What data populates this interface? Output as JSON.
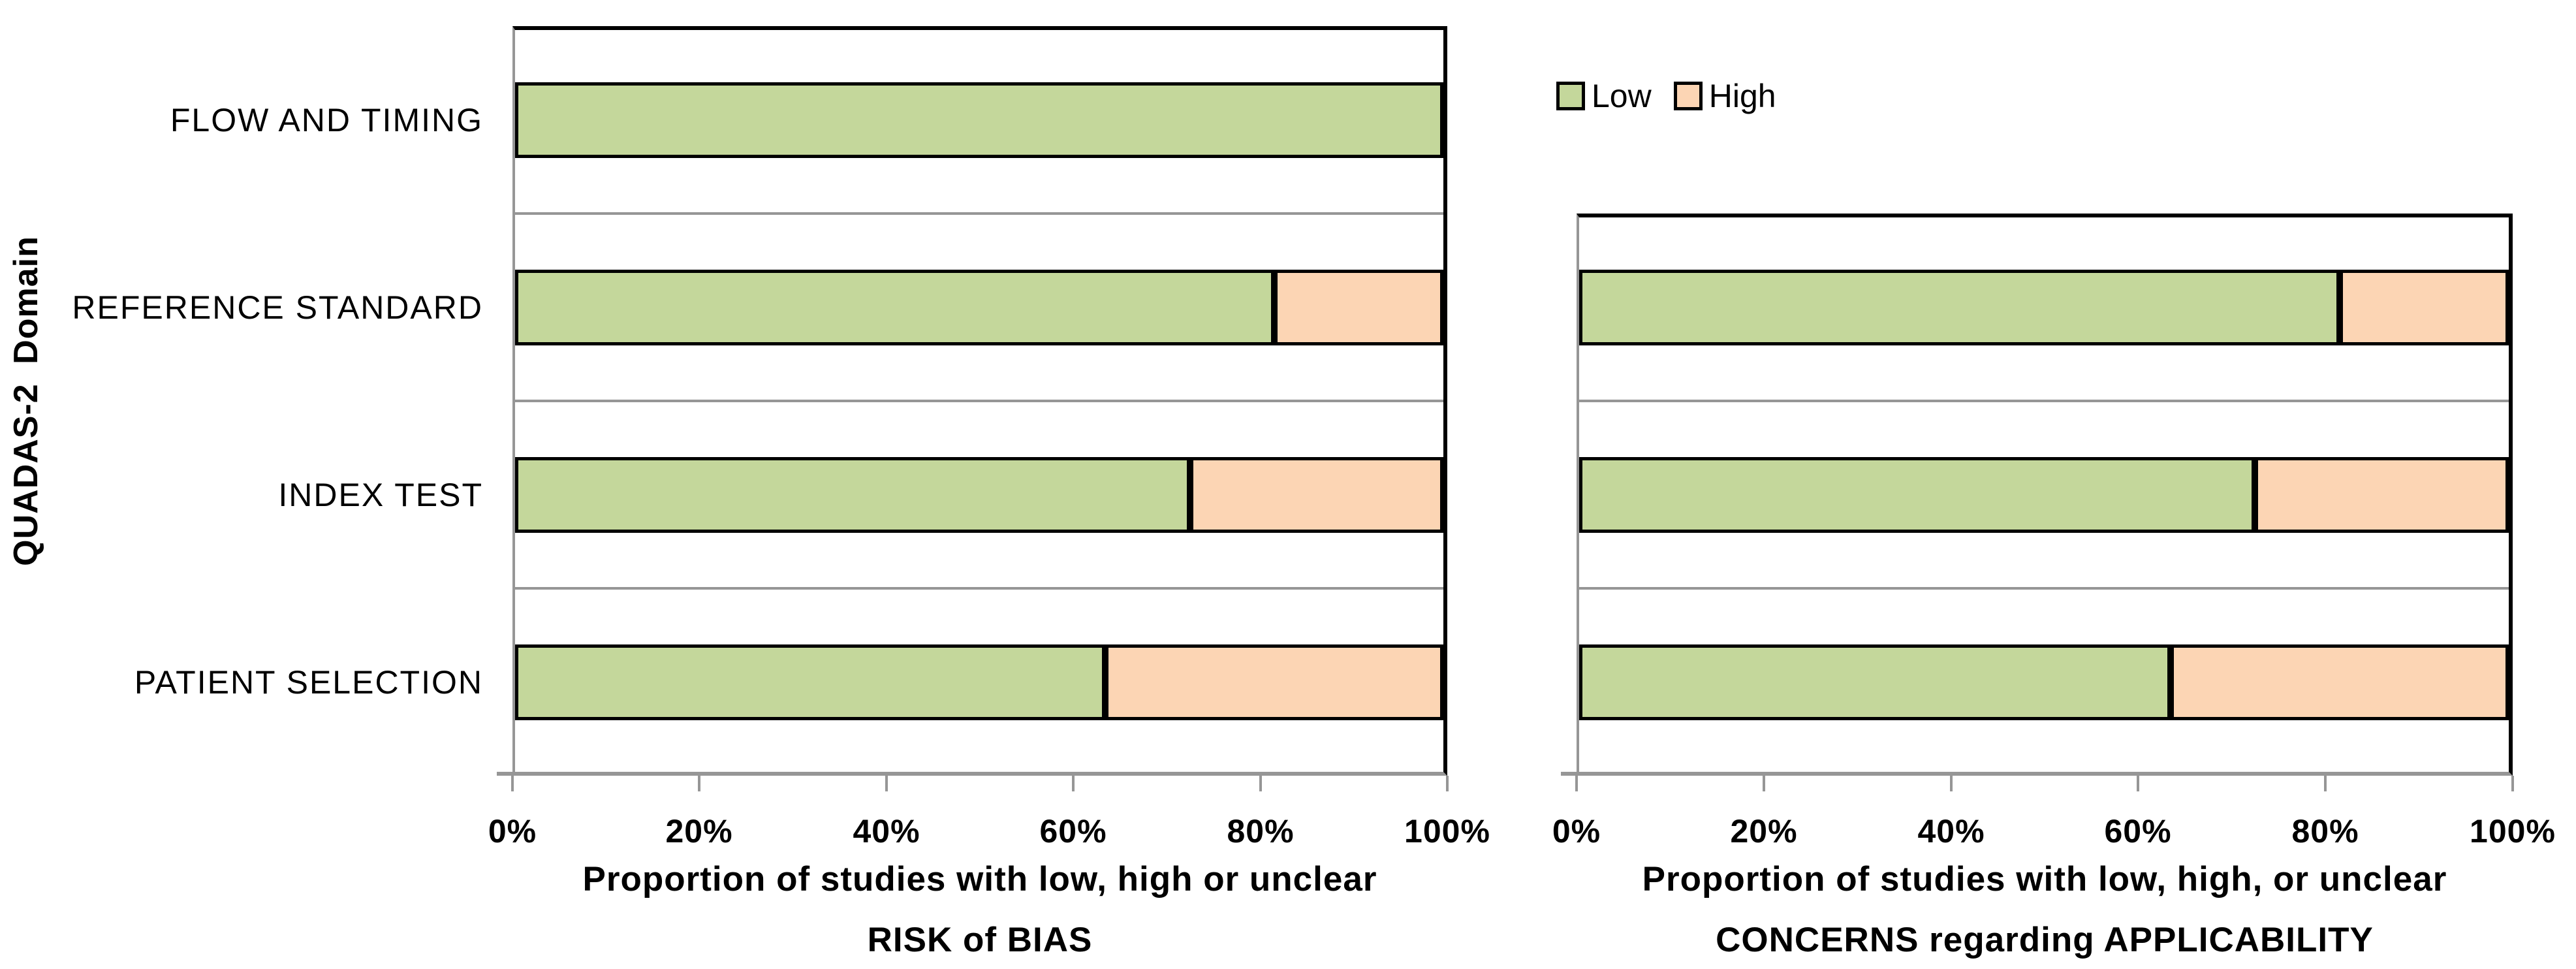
{
  "figure": {
    "y_axis_title": "QUADAS-2 Domain",
    "background_color": "#ffffff",
    "bar_border_color": "#000000",
    "gridline_color": "#969696",
    "axis_color": "#969696"
  },
  "legend": {
    "position": "top-right-above-applicability-chart",
    "items": [
      {
        "label": "Low",
        "color": "#c4d79b"
      },
      {
        "label": "High",
        "color": "#fcd5b4"
      }
    ]
  },
  "chart_data": [
    {
      "type": "bar",
      "orientation": "horizontal",
      "stacked": true,
      "title": "",
      "categories": [
        "FLOW AND TIMING",
        "REFERENCE STANDARD",
        "INDEX TEST",
        "PATIENT SELECTION"
      ],
      "show_category_labels": true,
      "series": [
        {
          "name": "Low",
          "color": "#c4d79b",
          "values": [
            100,
            81.8,
            72.7,
            63.6
          ]
        },
        {
          "name": "High",
          "color": "#fcd5b4",
          "values": [
            0,
            18.2,
            27.3,
            36.4
          ]
        }
      ],
      "xlim": [
        0,
        100
      ],
      "x_ticks": [
        "0%",
        "20%",
        "40%",
        "60%",
        "80%",
        "100%"
      ],
      "xlabel_line1": "Proportion of studies with low, high or unclear",
      "xlabel_line2": "RISK of BIAS",
      "ylabel": "QUADAS-2 Domain",
      "grid": "gray-separators-between-category-bands",
      "legend_position": "none"
    },
    {
      "type": "bar",
      "orientation": "horizontal",
      "stacked": true,
      "title": "",
      "categories": [
        "REFERENCE STANDARD",
        "INDEX TEST",
        "PATIENT SELECTION"
      ],
      "show_category_labels": false,
      "series": [
        {
          "name": "Low",
          "color": "#c4d79b",
          "values": [
            81.8,
            72.7,
            63.6
          ]
        },
        {
          "name": "High",
          "color": "#fcd5b4",
          "values": [
            18.2,
            27.3,
            36.4
          ]
        }
      ],
      "xlim": [
        0,
        100
      ],
      "x_ticks": [
        "0%",
        "20%",
        "40%",
        "60%",
        "80%",
        "100%"
      ],
      "xlabel_line1": "Proportion of studies with low, high, or unclear",
      "xlabel_line2": "CONCERNS regarding APPLICABILITY",
      "ylabel": "",
      "grid": "gray-separators-between-category-bands",
      "legend_position": "top-left-above-plot"
    }
  ]
}
